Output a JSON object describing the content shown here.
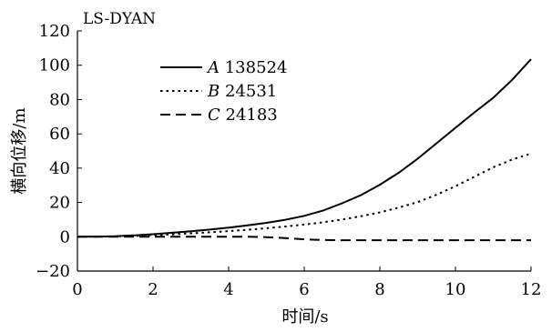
{
  "chart_data": {
    "type": "line",
    "title": "LS-DYAN",
    "xlabel": "时间/s",
    "ylabel": "横向位移/m",
    "xlim": [
      0,
      12
    ],
    "ylim": [
      -20,
      120
    ],
    "xticks": [
      "0",
      "2",
      "4",
      "6",
      "8",
      "10",
      "12"
    ],
    "yticks": [
      "−20",
      "0",
      "20",
      "40",
      "60",
      "80",
      "100",
      "120"
    ],
    "grid": false,
    "legend_position": "top-left",
    "series": [
      {
        "letter": "A",
        "number": "138524",
        "dash": "solid",
        "x": [
          0,
          0.5,
          1,
          1.5,
          2,
          2.5,
          3,
          3.5,
          4,
          4.5,
          5,
          5.5,
          6,
          6.5,
          7,
          7.5,
          8,
          8.5,
          9,
          9.5,
          10,
          10.5,
          11,
          11.5,
          12
        ],
        "y": [
          0,
          0.1,
          0.3,
          0.8,
          1.5,
          2.3,
          3.2,
          4.2,
          5.3,
          6.6,
          8.1,
          9.9,
          12.2,
          15.3,
          19.5,
          24.3,
          30.3,
          37.3,
          45.5,
          54.5,
          63.5,
          72.5,
          81,
          91.5,
          103.5
        ]
      },
      {
        "letter": "B",
        "number": "24531",
        "dash": "dotted",
        "x": [
          0,
          0.5,
          1,
          1.5,
          2,
          2.5,
          3,
          3.5,
          4,
          4.5,
          5,
          5.5,
          6,
          6.5,
          7,
          7.5,
          8,
          8.5,
          9,
          9.5,
          10,
          10.5,
          11,
          11.5,
          12
        ],
        "y": [
          0,
          0.1,
          0.2,
          0.5,
          0.9,
          1.4,
          2,
          2.6,
          3.3,
          4.1,
          5,
          6,
          7.1,
          8.4,
          10,
          12,
          14.2,
          17,
          20.2,
          24.5,
          29.5,
          35,
          40.5,
          45,
          48.5
        ]
      },
      {
        "letter": "C",
        "number": "24183",
        "dash": "dashed",
        "x": [
          0,
          1,
          2,
          3,
          4,
          4.5,
          5,
          5.5,
          6,
          6.5,
          7,
          8,
          9,
          10,
          11,
          12
        ],
        "y": [
          0,
          0,
          0,
          0,
          0,
          0,
          -0.2,
          -0.8,
          -1.5,
          -1.9,
          -2,
          -2,
          -2,
          -2,
          -2,
          -2
        ]
      }
    ]
  }
}
